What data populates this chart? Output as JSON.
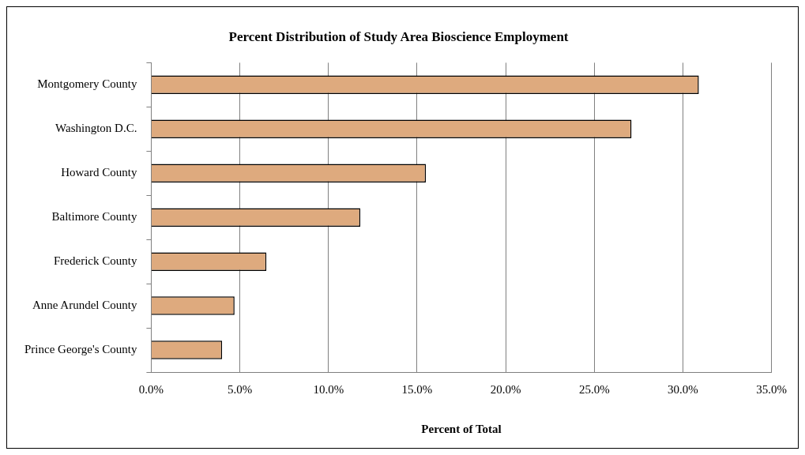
{
  "chart_data": {
    "type": "bar",
    "orientation": "horizontal",
    "title": "Percent Distribution of Study Area Bioscience Employment",
    "xlabel": "Percent of Total",
    "categories": [
      "Montgomery County",
      "Washington D.C.",
      "Howard County",
      "Baltimore County",
      "Frederick County",
      "Anne Arundel County",
      "Prince George's County"
    ],
    "values": [
      30.9,
      27.1,
      15.5,
      11.8,
      6.5,
      4.7,
      4.0
    ],
    "color": "#deaa7e",
    "xlim": [
      0,
      35
    ],
    "xticks": [
      {
        "value": 0,
        "label": "0.0%"
      },
      {
        "value": 5,
        "label": "5.0%"
      },
      {
        "value": 10,
        "label": "10.0%"
      },
      {
        "value": 15,
        "label": "15.0%"
      },
      {
        "value": 20,
        "label": "20.0%"
      },
      {
        "value": 25,
        "label": "25.0%"
      },
      {
        "value": 30,
        "label": "30.0%"
      },
      {
        "value": 35,
        "label": "35.0%"
      }
    ],
    "grid": "x",
    "legend": false
  }
}
